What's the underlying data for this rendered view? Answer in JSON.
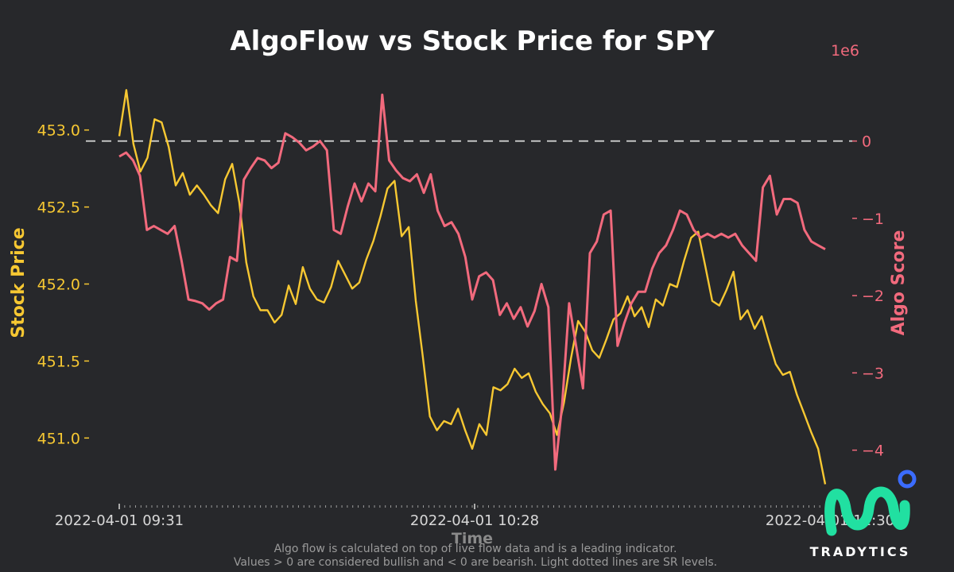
{
  "chart_data": {
    "type": "line",
    "title": "AlgoFlow vs Stock Price for SPY",
    "xlabel": "Time",
    "ylabel_left": "Stock Price",
    "ylabel_right": "Algo Score",
    "right_axis_multiplier": "1e6",
    "x_tick_labels": [
      "2022-04-01 09:31",
      "2022-04-01 10:28",
      "2022-04-01 11:30"
    ],
    "y_left_ticks": [
      "451.0",
      "451.5",
      "452.0",
      "452.5",
      "453.0"
    ],
    "y_left_tick_values": [
      451.0,
      451.5,
      452.0,
      452.5,
      453.0
    ],
    "y_right_ticks": [
      "−4",
      "−3",
      "−2",
      "−1",
      "0"
    ],
    "y_right_tick_values": [
      -4,
      -3,
      -2,
      -1,
      0
    ],
    "ylim_left": [
      450.62,
      453.38
    ],
    "ylim_right": [
      -4.6,
      0.9
    ],
    "zero_line": 0,
    "series": [
      {
        "name": "Stock Price",
        "axis": "left",
        "color": "#f7c832",
        "values": [
          452.96,
          453.26,
          452.91,
          452.73,
          452.82,
          453.07,
          453.05,
          452.89,
          452.64,
          452.72,
          452.58,
          452.64,
          452.58,
          452.51,
          452.46,
          452.68,
          452.78,
          452.53,
          452.14,
          451.92,
          451.83,
          451.83,
          451.75,
          451.8,
          451.99,
          451.87,
          452.11,
          451.97,
          451.9,
          451.88,
          451.98,
          452.15,
          452.06,
          451.97,
          452.01,
          452.16,
          452.28,
          452.44,
          452.62,
          452.67,
          452.31,
          452.37,
          451.89,
          451.53,
          451.14,
          451.05,
          451.11,
          451.09,
          451.19,
          451.05,
          450.93,
          451.09,
          451.02,
          451.33,
          451.31,
          451.35,
          451.45,
          451.39,
          451.42,
          451.3,
          451.22,
          451.16,
          451.02,
          451.23,
          451.52,
          451.76,
          451.69,
          451.57,
          451.52,
          451.64,
          451.77,
          451.81,
          451.92,
          451.79,
          451.85,
          451.72,
          451.9,
          451.86,
          452.0,
          451.98,
          452.15,
          452.3,
          452.34,
          452.12,
          451.89,
          451.86,
          451.96,
          452.08,
          451.77,
          451.83,
          451.71,
          451.79,
          451.63,
          451.48,
          451.41,
          451.43,
          451.28,
          451.16,
          451.04,
          450.93,
          450.7
        ]
      },
      {
        "name": "Algo Score",
        "axis": "right",
        "color": "#f26a7d",
        "values": [
          -0.2,
          -0.15,
          -0.25,
          -0.45,
          -1.15,
          -1.1,
          -1.15,
          -1.2,
          -1.1,
          -1.55,
          -2.05,
          -2.07,
          -2.1,
          -2.18,
          -2.1,
          -2.05,
          -1.5,
          -1.55,
          -0.5,
          -0.35,
          -0.22,
          -0.25,
          -0.35,
          -0.28,
          0.1,
          0.05,
          -0.02,
          -0.12,
          -0.07,
          0.0,
          -0.12,
          -1.15,
          -1.2,
          -0.85,
          -0.55,
          -0.78,
          -0.55,
          -0.65,
          0.6,
          -0.25,
          -0.38,
          -0.48,
          -0.52,
          -0.43,
          -0.67,
          -0.43,
          -0.9,
          -1.1,
          -1.05,
          -1.2,
          -1.5,
          -2.05,
          -1.75,
          -1.7,
          -1.8,
          -2.25,
          -2.1,
          -2.3,
          -2.15,
          -2.4,
          -2.2,
          -1.85,
          -2.15,
          -4.25,
          -3.4,
          -2.1,
          -2.65,
          -3.2,
          -1.45,
          -1.3,
          -0.95,
          -0.9,
          -2.65,
          -2.35,
          -2.1,
          -1.95,
          -1.95,
          -1.65,
          -1.45,
          -1.35,
          -1.15,
          -0.9,
          -0.95,
          -1.15,
          -1.25,
          -1.2,
          -1.25,
          -1.2,
          -1.25,
          -1.2,
          -1.35,
          -1.45,
          -1.55,
          -0.6,
          -0.45,
          -0.95,
          -0.75,
          -0.75,
          -0.8,
          -1.15,
          -1.3,
          -1.35,
          -1.4
        ]
      }
    ],
    "grid": false,
    "legend": "none"
  },
  "footnote": {
    "line1": "Algo flow is calculated on top of live flow data and is a leading indicator.",
    "line2": "Values > 0 are considered bullish and < 0 are bearish. Light dotted lines are SR levels."
  },
  "brand": {
    "name": "TRADYTICS",
    "colors": {
      "logo": "#21e0a1",
      "dot": "#3b6cff"
    }
  },
  "colors": {
    "background": "#27282b",
    "zero_line": "#e6e6e6",
    "minor_ticks": "#9a9a9a"
  }
}
